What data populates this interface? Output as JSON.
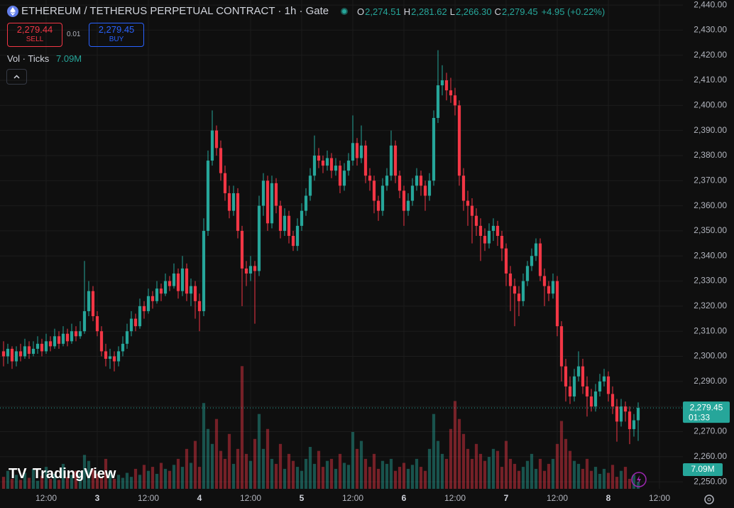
{
  "chart_data": {
    "type": "candlestick",
    "title": "ETHEREUM / TETHERUS PERPETUAL CONTRACT · 1h · Gate",
    "ohlc_header": [
      {
        "key": "O",
        "value": "2,274.51"
      },
      {
        "key": "H",
        "value": "2,281.62"
      },
      {
        "key": "L",
        "value": "2,266.30"
      },
      {
        "key": "C",
        "value": "2,279.45"
      },
      {
        "key": "",
        "value": "+4.95 (+0.22%)"
      }
    ],
    "sell": {
      "price": "2,279.44",
      "label": "SELL"
    },
    "spread": "0.01",
    "buy": {
      "price": "2,279.45",
      "label": "BUY"
    },
    "volume_legend": {
      "name": "Vol · Ticks",
      "value": "7.09M"
    },
    "price_tag": {
      "label": "2,279.45",
      "countdown": "01:33"
    },
    "volume_tag": "7.09M",
    "watermark": "TradingView",
    "up_color": "#26a69a",
    "down_color": "#f23645",
    "grid": true,
    "xlim": [
      1.1667,
      161.5
    ],
    "xticks": [
      {
        "value": 12,
        "label": "12:00"
      },
      {
        "value": 24,
        "label": "3"
      },
      {
        "value": 36,
        "label": "12:00"
      },
      {
        "value": 48,
        "label": "4"
      },
      {
        "value": 60,
        "label": "12:00"
      },
      {
        "value": 72,
        "label": "5"
      },
      {
        "value": 84,
        "label": "12:00"
      },
      {
        "value": 96,
        "label": "6"
      },
      {
        "value": 108,
        "label": "12:00"
      },
      {
        "value": 120,
        "label": "7"
      },
      {
        "value": 132,
        "label": "12:00"
      },
      {
        "value": 144,
        "label": "8"
      },
      {
        "value": 156,
        "label": "12:00"
      }
    ],
    "ylim": [
      2247.2,
      2442
    ],
    "yticks": [
      {
        "value": 2250,
        "label": "2,250.00"
      },
      {
        "value": 2260,
        "label": "2,260.00"
      },
      {
        "value": 2270,
        "label": "2,270.00"
      },
      {
        "value": 2280,
        "label": "2,280.00"
      },
      {
        "value": 2290,
        "label": "2,290.00"
      },
      {
        "value": 2300,
        "label": "2,300.00"
      },
      {
        "value": 2310,
        "label": "2,310.00"
      },
      {
        "value": 2320,
        "label": "2,320.00"
      },
      {
        "value": 2330,
        "label": "2,330.00"
      },
      {
        "value": 2340,
        "label": "2,340.00"
      },
      {
        "value": 2350,
        "label": "2,350.00"
      },
      {
        "value": 2360,
        "label": "2,360.00"
      },
      {
        "value": 2370,
        "label": "2,370.00"
      },
      {
        "value": 2380,
        "label": "2,380.00"
      },
      {
        "value": 2390,
        "label": "2,390.00"
      },
      {
        "value": 2400,
        "label": "2,400.00"
      },
      {
        "value": 2410,
        "label": "2,410.00"
      },
      {
        "value": 2420,
        "label": "2,420.00"
      },
      {
        "value": 2430,
        "label": "2,430.00"
      },
      {
        "value": 2440,
        "label": "2,440.00"
      }
    ],
    "volume_lim": [
      0,
      490
    ],
    "x": [
      2,
      3,
      4,
      5,
      6,
      7,
      8,
      9,
      10,
      11,
      12,
      13,
      14,
      15,
      16,
      17,
      18,
      19,
      20,
      21,
      22,
      23,
      24,
      25,
      26,
      27,
      28,
      29,
      30,
      31,
      32,
      33,
      34,
      35,
      36,
      37,
      38,
      39,
      40,
      41,
      42,
      43,
      44,
      45,
      46,
      47,
      48,
      49,
      50,
      51,
      52,
      53,
      54,
      55,
      56,
      57,
      58,
      59,
      60,
      61,
      62,
      63,
      64,
      65,
      66,
      67,
      68,
      69,
      70,
      71,
      72,
      73,
      74,
      75,
      76,
      77,
      78,
      79,
      80,
      81,
      82,
      83,
      84,
      85,
      86,
      87,
      88,
      89,
      90,
      91,
      92,
      93,
      94,
      95,
      96,
      97,
      98,
      99,
      100,
      101,
      102,
      103,
      104,
      105,
      106,
      107,
      108,
      109,
      110,
      111,
      112,
      113,
      114,
      115,
      116,
      117,
      118,
      119,
      120,
      121,
      122,
      123,
      124,
      125,
      126,
      127,
      128,
      129,
      130,
      131,
      132,
      133,
      134,
      135,
      136,
      137,
      138,
      139,
      140,
      141,
      142,
      143,
      144,
      145,
      146,
      147,
      148,
      149,
      150,
      151
    ],
    "candles": [
      [
        2302,
        2306,
        2296,
        2300
      ],
      [
        2300,
        2305,
        2297,
        2303
      ],
      [
        2303,
        2304,
        2295,
        2298
      ],
      [
        2298,
        2304,
        2296,
        2302
      ],
      [
        2302,
        2305,
        2298,
        2300
      ],
      [
        2300,
        2307,
        2299,
        2304
      ],
      [
        2304,
        2306,
        2299,
        2301
      ],
      [
        2301,
        2306,
        2300,
        2303
      ],
      [
        2303,
        2308,
        2301,
        2305
      ],
      [
        2305,
        2307,
        2300,
        2302
      ],
      [
        2302,
        2309,
        2301,
        2306
      ],
      [
        2306,
        2308,
        2302,
        2304
      ],
      [
        2304,
        2311,
        2303,
        2308
      ],
      [
        2308,
        2310,
        2303,
        2305
      ],
      [
        2305,
        2312,
        2304,
        2309
      ],
      [
        2309,
        2311,
        2304,
        2306
      ],
      [
        2306,
        2313,
        2305,
        2310
      ],
      [
        2310,
        2312,
        2306,
        2308
      ],
      [
        2308,
        2314,
        2307,
        2310
      ],
      [
        2310,
        2338,
        2309,
        2318
      ],
      [
        2318,
        2330,
        2316,
        2326
      ],
      [
        2326,
        2328,
        2314,
        2316
      ],
      [
        2316,
        2318,
        2308,
        2310
      ],
      [
        2310,
        2312,
        2300,
        2302
      ],
      [
        2302,
        2305,
        2296,
        2299
      ],
      [
        2299,
        2303,
        2295,
        2300
      ],
      [
        2300,
        2302,
        2294,
        2298
      ],
      [
        2298,
        2304,
        2296,
        2302
      ],
      [
        2302,
        2308,
        2300,
        2305
      ],
      [
        2305,
        2313,
        2303,
        2310
      ],
      [
        2310,
        2318,
        2308,
        2315
      ],
      [
        2315,
        2317,
        2310,
        2312
      ],
      [
        2312,
        2323,
        2311,
        2320
      ],
      [
        2320,
        2322,
        2315,
        2318
      ],
      [
        2318,
        2327,
        2317,
        2324
      ],
      [
        2324,
        2326,
        2319,
        2322
      ],
      [
        2322,
        2330,
        2321,
        2327
      ],
      [
        2327,
        2329,
        2322,
        2325
      ],
      [
        2325,
        2333,
        2324,
        2330
      ],
      [
        2330,
        2332,
        2326,
        2328
      ],
      [
        2328,
        2337,
        2327,
        2333
      ],
      [
        2333,
        2335,
        2323,
        2326
      ],
      [
        2326,
        2340,
        2324,
        2335
      ],
      [
        2335,
        2337,
        2322,
        2325
      ],
      [
        2325,
        2331,
        2320,
        2328
      ],
      [
        2328,
        2330,
        2315,
        2322
      ],
      [
        2322,
        2325,
        2310,
        2318
      ],
      [
        2318,
        2355,
        2316,
        2350
      ],
      [
        2350,
        2382,
        2348,
        2378
      ],
      [
        2378,
        2398,
        2376,
        2390
      ],
      [
        2390,
        2392,
        2380,
        2383
      ],
      [
        2383,
        2386,
        2370,
        2373
      ],
      [
        2373,
        2376,
        2362,
        2365
      ],
      [
        2365,
        2368,
        2355,
        2358
      ],
      [
        2358,
        2368,
        2356,
        2365
      ],
      [
        2365,
        2367,
        2347,
        2350
      ],
      [
        2350,
        2352,
        2320,
        2335
      ],
      [
        2335,
        2338,
        2328,
        2333
      ],
      [
        2333,
        2340,
        2330,
        2336
      ],
      [
        2336,
        2338,
        2313,
        2334
      ],
      [
        2334,
        2364,
        2332,
        2360
      ],
      [
        2360,
        2373,
        2356,
        2370
      ],
      [
        2370,
        2372,
        2350,
        2353
      ],
      [
        2353,
        2372,
        2351,
        2369
      ],
      [
        2369,
        2371,
        2357,
        2360
      ],
      [
        2360,
        2362,
        2347,
        2350
      ],
      [
        2350,
        2359,
        2348,
        2356
      ],
      [
        2356,
        2358,
        2345,
        2348
      ],
      [
        2348,
        2350,
        2342,
        2344
      ],
      [
        2344,
        2355,
        2342,
        2352
      ],
      [
        2352,
        2361,
        2350,
        2358
      ],
      [
        2358,
        2367,
        2356,
        2364
      ],
      [
        2364,
        2375,
        2362,
        2372
      ],
      [
        2372,
        2388,
        2370,
        2380
      ],
      [
        2380,
        2383,
        2375,
        2378
      ],
      [
        2378,
        2380,
        2373,
        2376
      ],
      [
        2376,
        2382,
        2374,
        2379
      ],
      [
        2379,
        2381,
        2371,
        2374
      ],
      [
        2374,
        2379,
        2372,
        2376
      ],
      [
        2376,
        2378,
        2365,
        2368
      ],
      [
        2368,
        2377,
        2366,
        2374
      ],
      [
        2374,
        2381,
        2372,
        2378
      ],
      [
        2378,
        2396,
        2376,
        2385
      ],
      [
        2385,
        2387,
        2376,
        2379
      ],
      [
        2379,
        2392,
        2377,
        2384
      ],
      [
        2384,
        2386,
        2369,
        2372
      ],
      [
        2372,
        2375,
        2366,
        2370
      ],
      [
        2370,
        2372,
        2357,
        2362
      ],
      [
        2362,
        2364,
        2354,
        2358
      ],
      [
        2358,
        2371,
        2356,
        2368
      ],
      [
        2368,
        2375,
        2366,
        2372
      ],
      [
        2372,
        2390,
        2370,
        2384
      ],
      [
        2384,
        2386,
        2369,
        2372
      ],
      [
        2372,
        2374,
        2363,
        2366
      ],
      [
        2366,
        2368,
        2352,
        2358
      ],
      [
        2358,
        2365,
        2356,
        2362
      ],
      [
        2362,
        2371,
        2360,
        2368
      ],
      [
        2368,
        2375,
        2366,
        2372
      ],
      [
        2372,
        2374,
        2364,
        2368
      ],
      [
        2368,
        2370,
        2358,
        2364
      ],
      [
        2364,
        2373,
        2362,
        2370
      ],
      [
        2370,
        2398,
        2368,
        2395
      ],
      [
        2395,
        2422,
        2393,
        2408
      ],
      [
        2408,
        2416,
        2404,
        2410
      ],
      [
        2410,
        2413,
        2402,
        2406
      ],
      [
        2406,
        2411,
        2401,
        2404
      ],
      [
        2404,
        2407,
        2396,
        2400
      ],
      [
        2400,
        2402,
        2368,
        2372
      ],
      [
        2372,
        2375,
        2358,
        2362
      ],
      [
        2362,
        2366,
        2352,
        2360
      ],
      [
        2360,
        2363,
        2345,
        2356
      ],
      [
        2356,
        2359,
        2348,
        2352
      ],
      [
        2352,
        2355,
        2338,
        2348
      ],
      [
        2348,
        2351,
        2342,
        2345
      ],
      [
        2345,
        2353,
        2343,
        2350
      ],
      [
        2350,
        2355,
        2346,
        2352
      ],
      [
        2352,
        2354,
        2344,
        2348
      ],
      [
        2348,
        2350,
        2338,
        2343
      ],
      [
        2343,
        2345,
        2328,
        2333
      ],
      [
        2333,
        2336,
        2318,
        2328
      ],
      [
        2328,
        2331,
        2312,
        2325
      ],
      [
        2325,
        2328,
        2316,
        2322
      ],
      [
        2322,
        2333,
        2320,
        2330
      ],
      [
        2330,
        2338,
        2328,
        2336
      ],
      [
        2336,
        2343,
        2334,
        2340
      ],
      [
        2340,
        2347,
        2338,
        2345
      ],
      [
        2345,
        2347,
        2330,
        2332
      ],
      [
        2332,
        2335,
        2320,
        2328
      ],
      [
        2328,
        2330,
        2322,
        2325
      ],
      [
        2325,
        2333,
        2323,
        2330
      ],
      [
        2330,
        2332,
        2308,
        2312
      ],
      [
        2312,
        2314,
        2290,
        2296
      ],
      [
        2296,
        2299,
        2282,
        2288
      ],
      [
        2288,
        2292,
        2281,
        2284
      ],
      [
        2284,
        2295,
        2282,
        2292
      ],
      [
        2292,
        2302,
        2290,
        2296
      ],
      [
        2296,
        2299,
        2285,
        2288
      ],
      [
        2288,
        2292,
        2276,
        2284
      ],
      [
        2284,
        2287,
        2278,
        2280
      ],
      [
        2280,
        2289,
        2278,
        2286
      ],
      [
        2286,
        2293,
        2284,
        2290
      ],
      [
        2290,
        2295,
        2288,
        2292
      ],
      [
        2292,
        2294,
        2282,
        2285
      ],
      [
        2285,
        2288,
        2277,
        2280
      ],
      [
        2280,
        2283,
        2266,
        2274
      ],
      [
        2274,
        2283,
        2272,
        2280
      ],
      [
        2280,
        2282,
        2274,
        2278
      ],
      [
        2278,
        2280,
        2265,
        2271
      ],
      [
        2271,
        2277,
        2268,
        2274.51
      ],
      [
        2274.51,
        2281.62,
        2266.3,
        2279.45
      ]
    ],
    "volume": [
      12,
      18,
      10,
      14,
      9,
      16,
      11,
      20,
      8,
      13,
      22,
      10,
      15,
      9,
      25,
      12,
      14,
      18,
      16,
      34,
      28,
      20,
      15,
      12,
      30,
      18,
      10,
      14,
      11,
      16,
      12,
      20,
      14,
      24,
      18,
      22,
      15,
      26,
      20,
      18,
      24,
      30,
      22,
      40,
      26,
      48,
      22,
      86,
      60,
      45,
      70,
      38,
      30,
      55,
      25,
      40,
      123,
      35,
      28,
      50,
      75,
      40,
      60,
      30,
      25,
      45,
      20,
      35,
      28,
      22,
      18,
      30,
      42,
      25,
      38,
      22,
      28,
      30,
      20,
      35,
      26,
      24,
      57,
      40,
      48,
      30,
      22,
      35,
      20,
      28,
      25,
      30,
      18,
      22,
      26,
      20,
      24,
      30,
      22,
      18,
      40,
      75,
      48,
      35,
      30,
      60,
      88,
      70,
      55,
      40,
      30,
      45,
      35,
      28,
      32,
      40,
      38,
      22,
      48,
      30,
      25,
      18,
      22,
      28,
      35,
      20,
      30,
      18,
      25,
      30,
      45,
      68,
      50,
      38,
      28,
      25,
      20,
      30,
      18,
      22,
      15,
      20,
      16,
      24,
      12,
      18,
      22,
      10,
      14,
      7.09
    ]
  }
}
